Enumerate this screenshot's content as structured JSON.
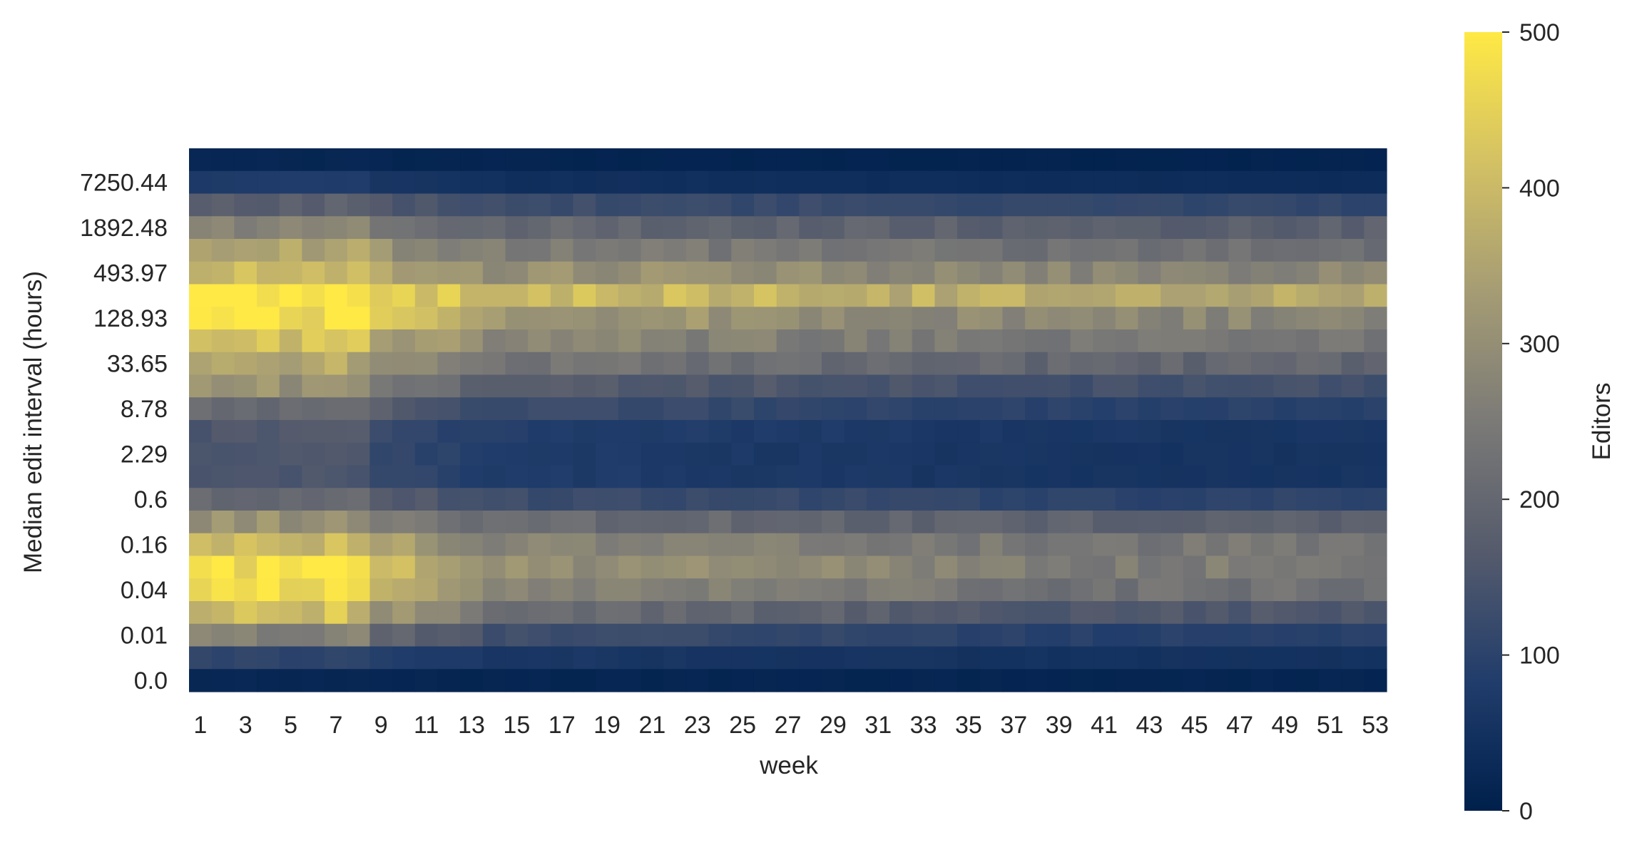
{
  "chart_data": {
    "type": "heatmap",
    "title": "",
    "xlabel": "week",
    "ylabel": "Median edit interval (hours)",
    "x": [
      1,
      2,
      3,
      4,
      5,
      6,
      7,
      8,
      9,
      10,
      11,
      12,
      13,
      14,
      15,
      16,
      17,
      18,
      19,
      20,
      21,
      22,
      23,
      24,
      25,
      26,
      27,
      28,
      29,
      30,
      31,
      32,
      33,
      34,
      35,
      36,
      37,
      38,
      39,
      40,
      41,
      42,
      43,
      44,
      45,
      46,
      47,
      48,
      49,
      50,
      51,
      52,
      53
    ],
    "x_tick_labels": [
      "1",
      "3",
      "5",
      "7",
      "9",
      "11",
      "13",
      "15",
      "17",
      "19",
      "21",
      "23",
      "25",
      "27",
      "29",
      "31",
      "33",
      "35",
      "37",
      "39",
      "41",
      "43",
      "45",
      "47",
      "49",
      "51",
      "53"
    ],
    "y_row_count": 24,
    "y_tick_labels": [
      "7250.44",
      "1892.48",
      "493.97",
      "128.93",
      "33.65",
      "8.78",
      "2.29",
      "0.6",
      "0.16",
      "0.04",
      "0.01",
      "0.0"
    ],
    "y_tick_rows": [
      1,
      3,
      5,
      7,
      9,
      11,
      13,
      15,
      17,
      19,
      21,
      23
    ],
    "row_profiles": {
      "early": [
        20,
        90,
        230,
        330,
        400,
        490,
        490,
        380,
        340,
        220,
        150,
        150,
        160,
        280,
        400,
        490,
        490,
        340,
        120,
        20
      ],
      "late": [
        10,
        40,
        150,
        210,
        260,
        380,
        250,
        230,
        150,
        100,
        60,
        55,
        60,
        170,
        240,
        260,
        210,
        110,
        60,
        15
      ]
    },
    "colorbar": {
      "label": "Editors",
      "min": 0,
      "max": 500,
      "ticks": [
        0,
        100,
        200,
        300,
        400,
        500
      ],
      "colormap": "cividis",
      "colors": [
        "#00204c",
        "#213d6b",
        "#555b6c",
        "#7b7a77",
        "#a59c74",
        "#d3c164",
        "#ffe945"
      ]
    },
    "grid": false
  }
}
